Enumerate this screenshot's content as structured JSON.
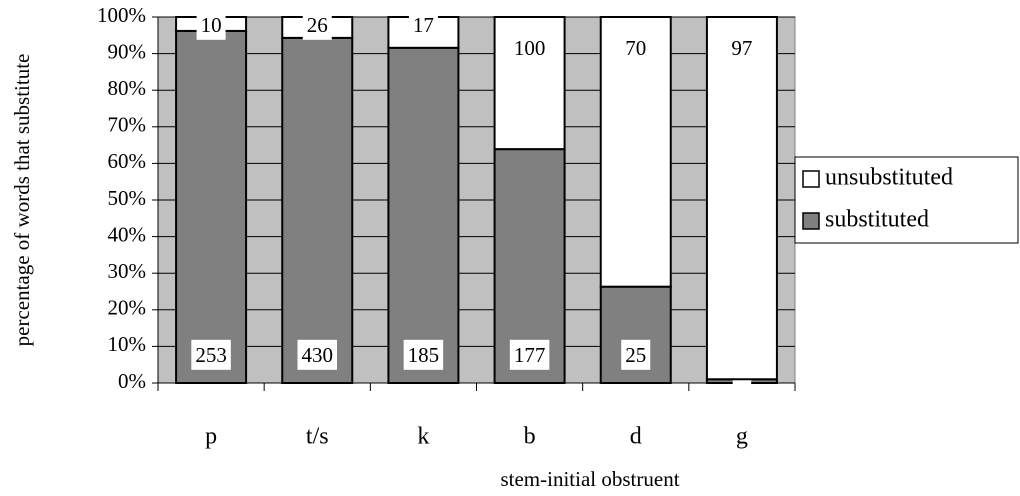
{
  "chart_data": {
    "type": "bar",
    "stacking": "percent",
    "x_label": "stem-initial obstruent",
    "y_label": "percentage of words that substitute",
    "categories": [
      "p",
      "t/s",
      "k",
      "b",
      "d",
      "g"
    ],
    "series": [
      {
        "name": "substituted",
        "color": "#808080",
        "values": [
          253,
          430,
          185,
          177,
          25,
          1
        ]
      },
      {
        "name": "unsubstituted",
        "color": "#ffffff",
        "values": [
          10,
          26,
          17,
          100,
          70,
          97
        ]
      }
    ],
    "ylim": [
      0,
      100
    ],
    "yticks": [
      {
        "value": 0,
        "label": "0%"
      },
      {
        "value": 10,
        "label": "10%"
      },
      {
        "value": 20,
        "label": "20%"
      },
      {
        "value": 30,
        "label": "30%"
      },
      {
        "value": 40,
        "label": "40%"
      },
      {
        "value": 50,
        "label": "50%"
      },
      {
        "value": 60,
        "label": "60%"
      },
      {
        "value": 70,
        "label": "70%"
      },
      {
        "value": 80,
        "label": "80%"
      },
      {
        "value": 90,
        "label": "90%"
      },
      {
        "value": 100,
        "label": "100%"
      }
    ],
    "grid": true,
    "plot_background": "#c0c0c0",
    "legend": "right"
  }
}
